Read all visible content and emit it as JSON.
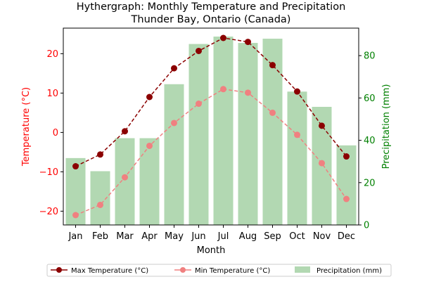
{
  "chart_data": {
    "type": "bar",
    "title_line1": "Hythergraph: Monthly Temperature and Precipitation",
    "title_line2": "Thunder Bay, Ontario (Canada)",
    "xlabel": "Month",
    "ylabel_left": "Temperature (°C)",
    "ylabel_right": "Precipitation (mm)",
    "categories": [
      "Jan",
      "Feb",
      "Mar",
      "Apr",
      "May",
      "Jun",
      "Jul",
      "Aug",
      "Sep",
      "Oct",
      "Nov",
      "Dec"
    ],
    "y_left_lim": [
      -23.5,
      26.5
    ],
    "y_left_ticks": [
      -20,
      -10,
      0,
      10,
      20
    ],
    "y_right_lim": [
      0,
      93
    ],
    "y_right_ticks": [
      0,
      20,
      40,
      60,
      80
    ],
    "grid": false,
    "legend_position": "bottom-center",
    "series": [
      {
        "name": "Max Temperature (°C)",
        "kind": "line",
        "axis": "left",
        "color": "#8b0000",
        "values": [
          -8.6,
          -5.6,
          0.3,
          9.0,
          16.3,
          20.7,
          24.0,
          23.0,
          17.1,
          10.4,
          1.7,
          -6.1
        ]
      },
      {
        "name": "Min Temperature (°C)",
        "kind": "line",
        "axis": "left",
        "color": "#f08080",
        "values": [
          -21.0,
          -18.4,
          -11.4,
          -3.4,
          2.4,
          7.3,
          11.0,
          10.1,
          5.0,
          -0.6,
          -7.8,
          -16.9
        ]
      },
      {
        "name": "Precipitation (mm)",
        "kind": "bar",
        "axis": "right",
        "color": "#b2d8b2",
        "values": [
          31.6,
          25.4,
          41.0,
          41.0,
          66.5,
          85.5,
          89.0,
          86.0,
          88.0,
          63.0,
          55.8,
          37.6
        ]
      }
    ],
    "colors": {
      "left_axis": "#ff0000",
      "right_axis": "#008000"
    }
  }
}
